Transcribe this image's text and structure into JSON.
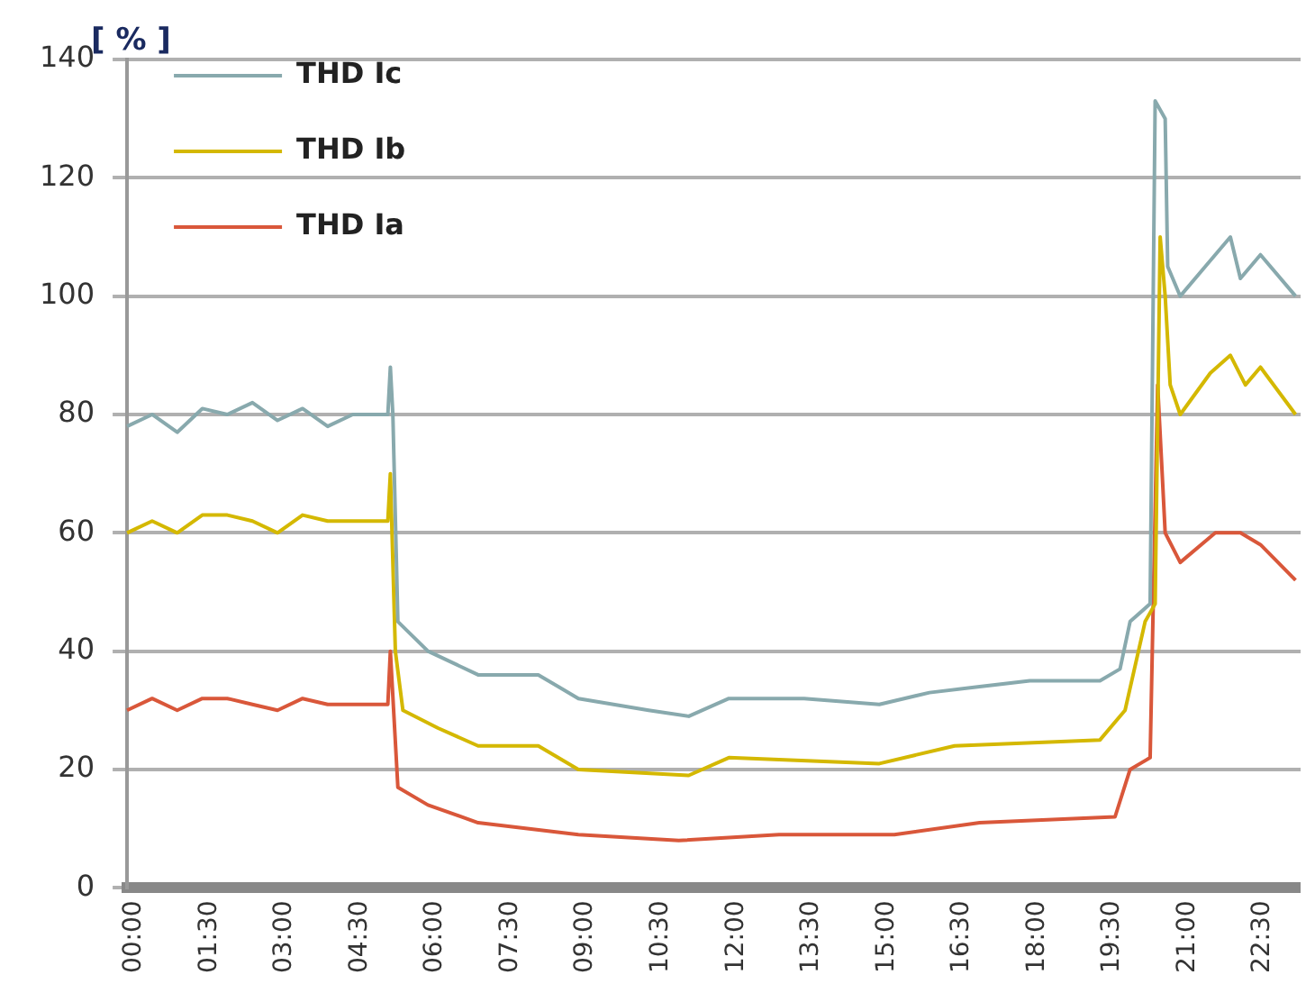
{
  "chart_data": {
    "type": "line",
    "ylabel": "[ % ]",
    "xlim": [
      0,
      23.4
    ],
    "xticks": [
      {
        "value": 0,
        "label": "00:00"
      },
      {
        "value": 1.5,
        "label": "01:30"
      },
      {
        "value": 3,
        "label": "03:00"
      },
      {
        "value": 4.5,
        "label": "04:30"
      },
      {
        "value": 6,
        "label": "06:00"
      },
      {
        "value": 7.5,
        "label": "07:30"
      },
      {
        "value": 9,
        "label": "09:00"
      },
      {
        "value": 10.5,
        "label": "10:30"
      },
      {
        "value": 12,
        "label": "12:00"
      },
      {
        "value": 13.5,
        "label": "13:30"
      },
      {
        "value": 15,
        "label": "15:00"
      },
      {
        "value": 16.5,
        "label": "16:30"
      },
      {
        "value": 18,
        "label": "18:00"
      },
      {
        "value": 19.5,
        "label": "19:30"
      },
      {
        "value": 21,
        "label": "21:00"
      },
      {
        "value": 22.5,
        "label": "22:30"
      }
    ],
    "ylim": [
      0,
      140
    ],
    "yticks": [
      0,
      20,
      40,
      60,
      80,
      100,
      120,
      140
    ],
    "grid": "y",
    "legend": "top left",
    "marker": "none",
    "line_style": "solid",
    "series": [
      {
        "name": "THD Ic",
        "color": "#88a9ad",
        "x": [
          0,
          0.5,
          1,
          1.5,
          2,
          2.5,
          3,
          3.5,
          4,
          4.5,
          5,
          5.2,
          5.25,
          5.3,
          5.4,
          6,
          7,
          8.2,
          9,
          10.4,
          11.2,
          12,
          13.5,
          15,
          16,
          17,
          18,
          19.4,
          19.8,
          20,
          20.4,
          20.5,
          20.7,
          20.75,
          21,
          21.5,
          22,
          22.2,
          22.6,
          23.3
        ],
        "values": [
          78,
          80,
          77,
          81,
          80,
          82,
          79,
          81,
          78,
          80,
          80,
          80,
          88,
          80,
          45,
          40,
          36,
          36,
          32,
          30,
          29,
          32,
          32,
          31,
          33,
          34,
          35,
          35,
          37,
          45,
          48,
          133,
          130,
          105,
          100,
          105,
          110,
          103,
          107,
          100
        ]
      },
      {
        "name": "THD Ib",
        "color": "#d4b800",
        "x": [
          0,
          0.5,
          1,
          1.5,
          2,
          2.5,
          3,
          3.5,
          4,
          4.5,
          5,
          5.2,
          5.25,
          5.35,
          5.5,
          6.2,
          7,
          8.2,
          9,
          11.2,
          12,
          15,
          16.5,
          19.4,
          19.9,
          20.3,
          20.5,
          20.6,
          20.7,
          20.8,
          21,
          21.6,
          22,
          22.3,
          22.6,
          23.3
        ],
        "values": [
          60,
          62,
          60,
          63,
          63,
          62,
          60,
          63,
          62,
          62,
          62,
          62,
          70,
          40,
          30,
          27,
          24,
          24,
          20,
          19,
          22,
          21,
          24,
          25,
          30,
          45,
          48,
          110,
          100,
          85,
          80,
          87,
          90,
          85,
          88,
          80
        ]
      },
      {
        "name": "THD Ia",
        "color": "#d9573a",
        "x": [
          0,
          0.5,
          1,
          1.5,
          2,
          2.5,
          3,
          3.5,
          4,
          4.5,
          5,
          5.2,
          5.25,
          5.4,
          6,
          7,
          9,
          11,
          13,
          15.3,
          17,
          19.7,
          20,
          20.4,
          20.55,
          20.7,
          21,
          21.7,
          22.2,
          22.6,
          23.3
        ],
        "values": [
          30,
          32,
          30,
          32,
          32,
          31,
          30,
          32,
          31,
          31,
          31,
          31,
          40,
          17,
          14,
          11,
          9,
          8,
          9,
          9,
          11,
          12,
          20,
          22,
          85,
          60,
          55,
          60,
          60,
          58,
          52
        ]
      }
    ]
  }
}
